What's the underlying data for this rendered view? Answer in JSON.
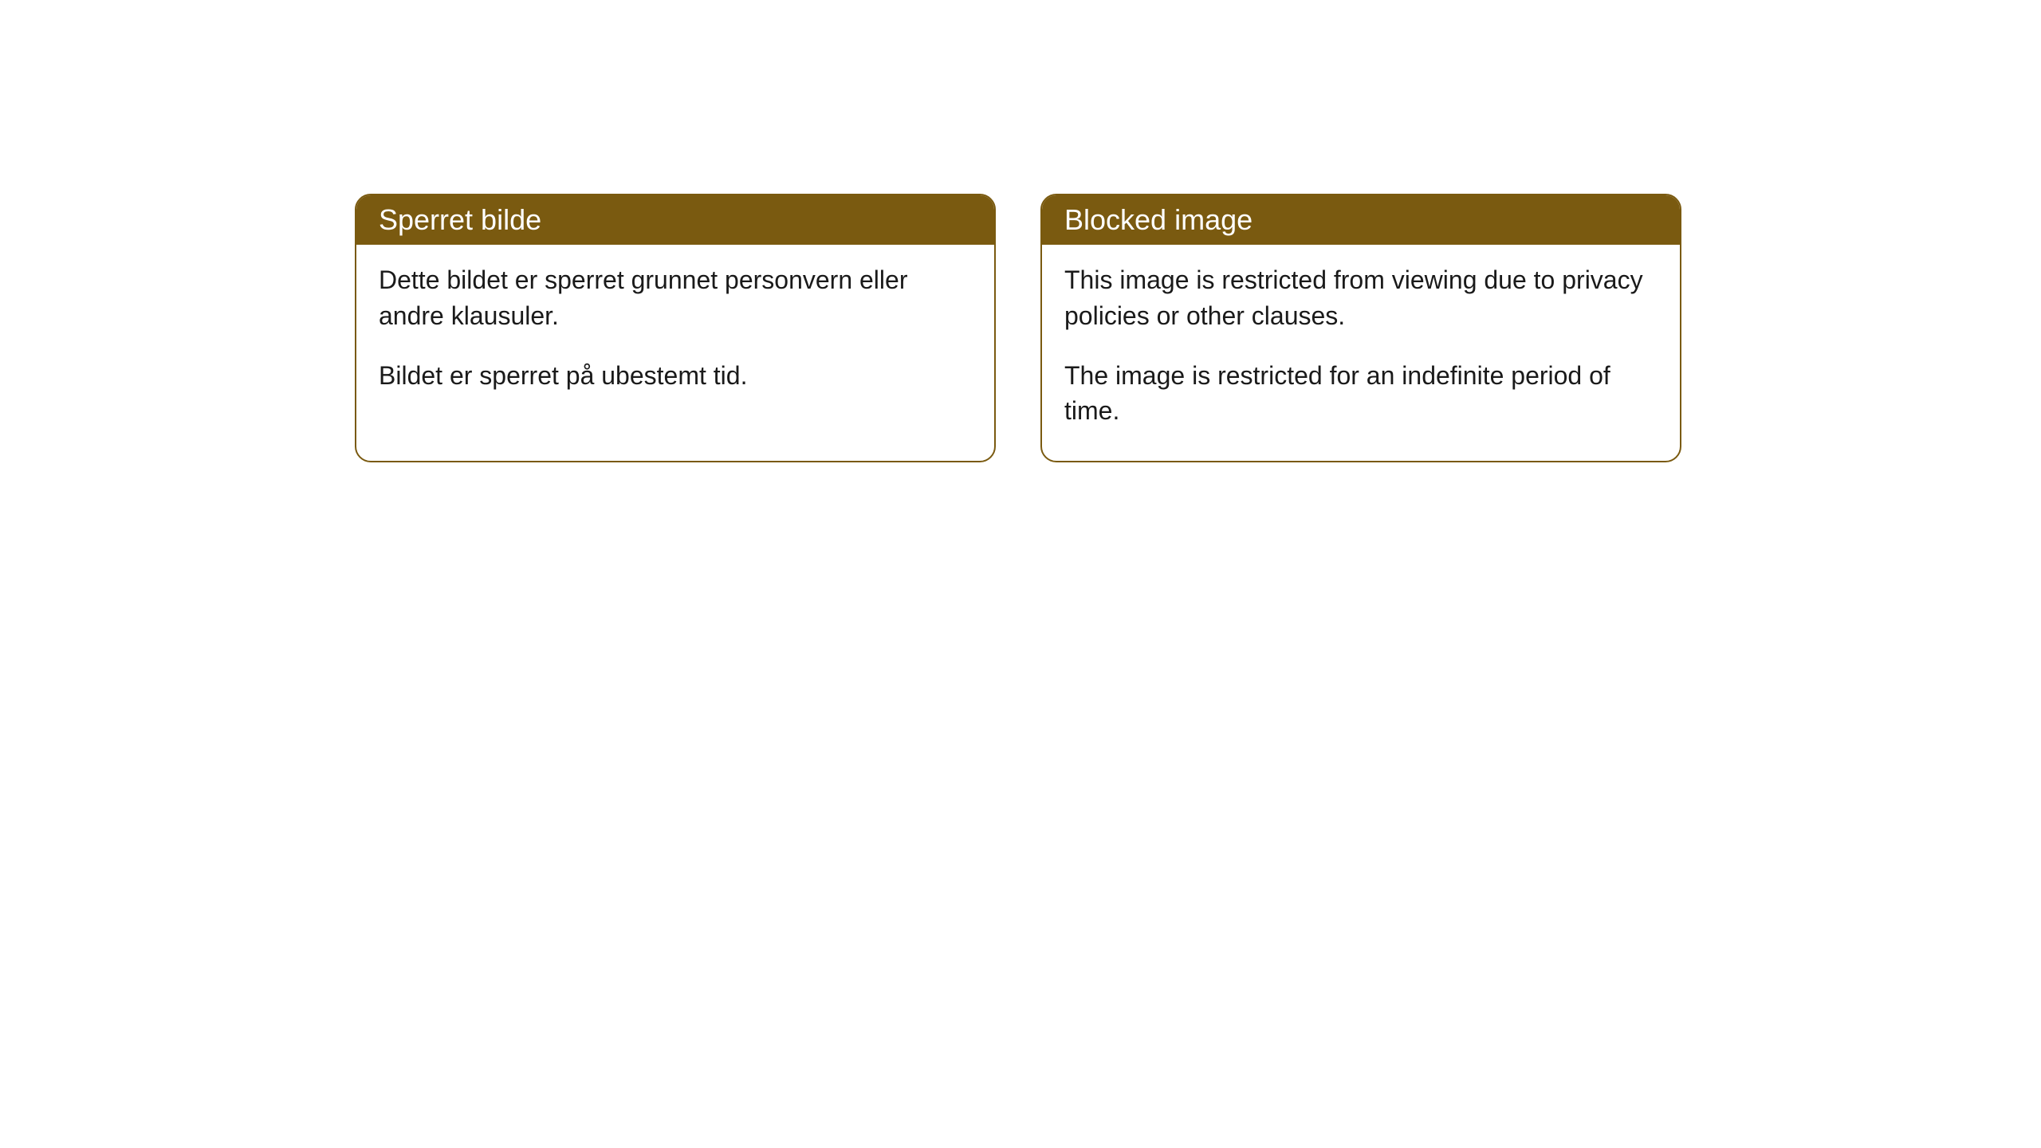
{
  "cards": [
    {
      "title": "Sperret bilde",
      "paragraph1": "Dette bildet er sperret grunnet personvern eller andre klausuler.",
      "paragraph2": "Bildet er sperret på ubestemt tid."
    },
    {
      "title": "Blocked image",
      "paragraph1": "This image is restricted from viewing due to privacy policies or other clauses.",
      "paragraph2": "The image is restricted for an indefinite period of time."
    }
  ],
  "styling": {
    "header_background": "#7a5a10",
    "header_text_color": "#ffffff",
    "border_color": "#7a5a10",
    "body_background": "#ffffff",
    "body_text_color": "#1a1a1a",
    "border_radius": 20,
    "header_fontsize": 36,
    "body_fontsize": 32
  }
}
